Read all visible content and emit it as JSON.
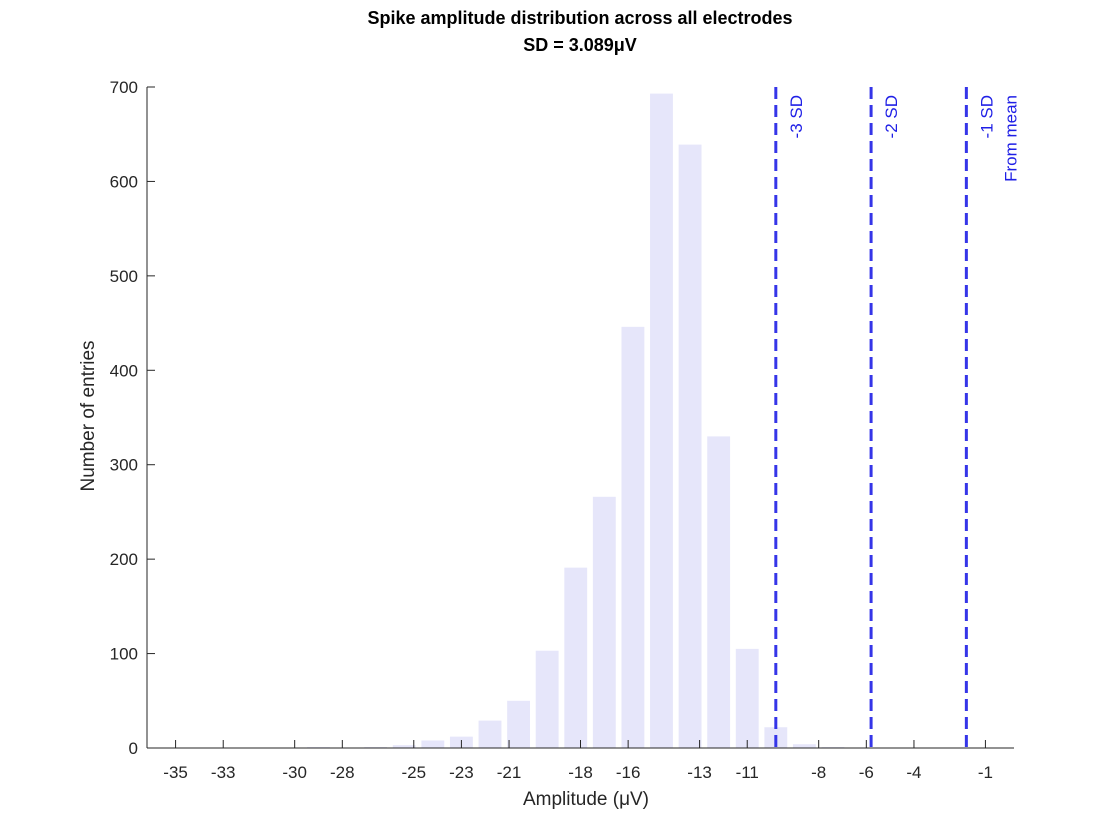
{
  "chart_data": {
    "type": "bar",
    "title": "Spike amplitude distribution across all electrodes",
    "subtitle": "SD = 3.089μV",
    "xlabel": "Amplitude (μV)",
    "ylabel": "Number of entries",
    "xlim": [
      -36.2,
      0.2
    ],
    "ylim": [
      0,
      700
    ],
    "xticks": [
      -35,
      -33,
      -30,
      -28,
      -25,
      -23,
      -21,
      -18,
      -16,
      -13,
      -11,
      -8,
      -6,
      -4,
      -1
    ],
    "yticks": [
      0,
      100,
      200,
      300,
      400,
      500,
      600,
      700
    ],
    "bar_color": "#e6e6fa",
    "bins": [
      -35.0,
      -33.8,
      -32.6,
      -31.4,
      -30.2,
      -29.0,
      -27.8,
      -26.6,
      -25.4,
      -24.2,
      -23.0,
      -21.8,
      -20.6,
      -19.4,
      -18.2,
      -17.0,
      -15.8,
      -14.6,
      -13.4,
      -12.2,
      -11.0,
      -9.8,
      -8.6,
      -7.4
    ],
    "values": [
      0,
      0,
      0,
      0,
      0,
      1,
      0,
      1,
      3,
      8,
      12,
      29,
      50,
      103,
      191,
      266,
      446,
      693,
      639,
      330,
      105,
      22,
      4,
      1
    ],
    "reference_lines": {
      "color": "#3535e8",
      "style": "dashed",
      "lines": [
        {
          "x": -9.8,
          "label": "-3 SD"
        },
        {
          "x": -5.8,
          "label": "-2 SD"
        },
        {
          "x": -1.8,
          "label": "-1 SD"
        }
      ],
      "note": "From mean"
    },
    "grid": false,
    "legend": "none"
  }
}
